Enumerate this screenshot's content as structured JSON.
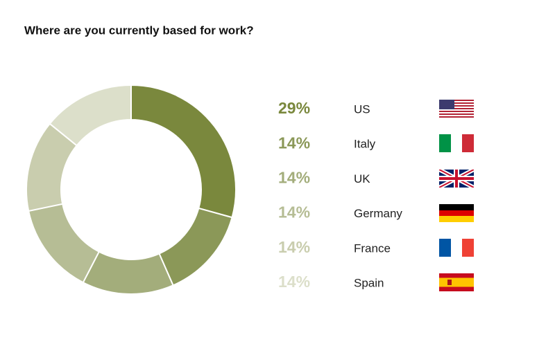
{
  "chart_data": {
    "type": "donut",
    "title": "Where are you currently based for work?",
    "categories": [
      "US",
      "Italy",
      "UK",
      "Germany",
      "France",
      "Spain"
    ],
    "values": [
      29,
      14,
      14,
      14,
      14,
      14
    ],
    "value_labels": [
      "29%",
      "14%",
      "14%",
      "14%",
      "14%",
      "14%"
    ],
    "colors": [
      "#7a883d",
      "#8b9858",
      "#a3ad7b",
      "#b6bd95",
      "#c9cdae",
      "#dcdfca"
    ]
  }
}
